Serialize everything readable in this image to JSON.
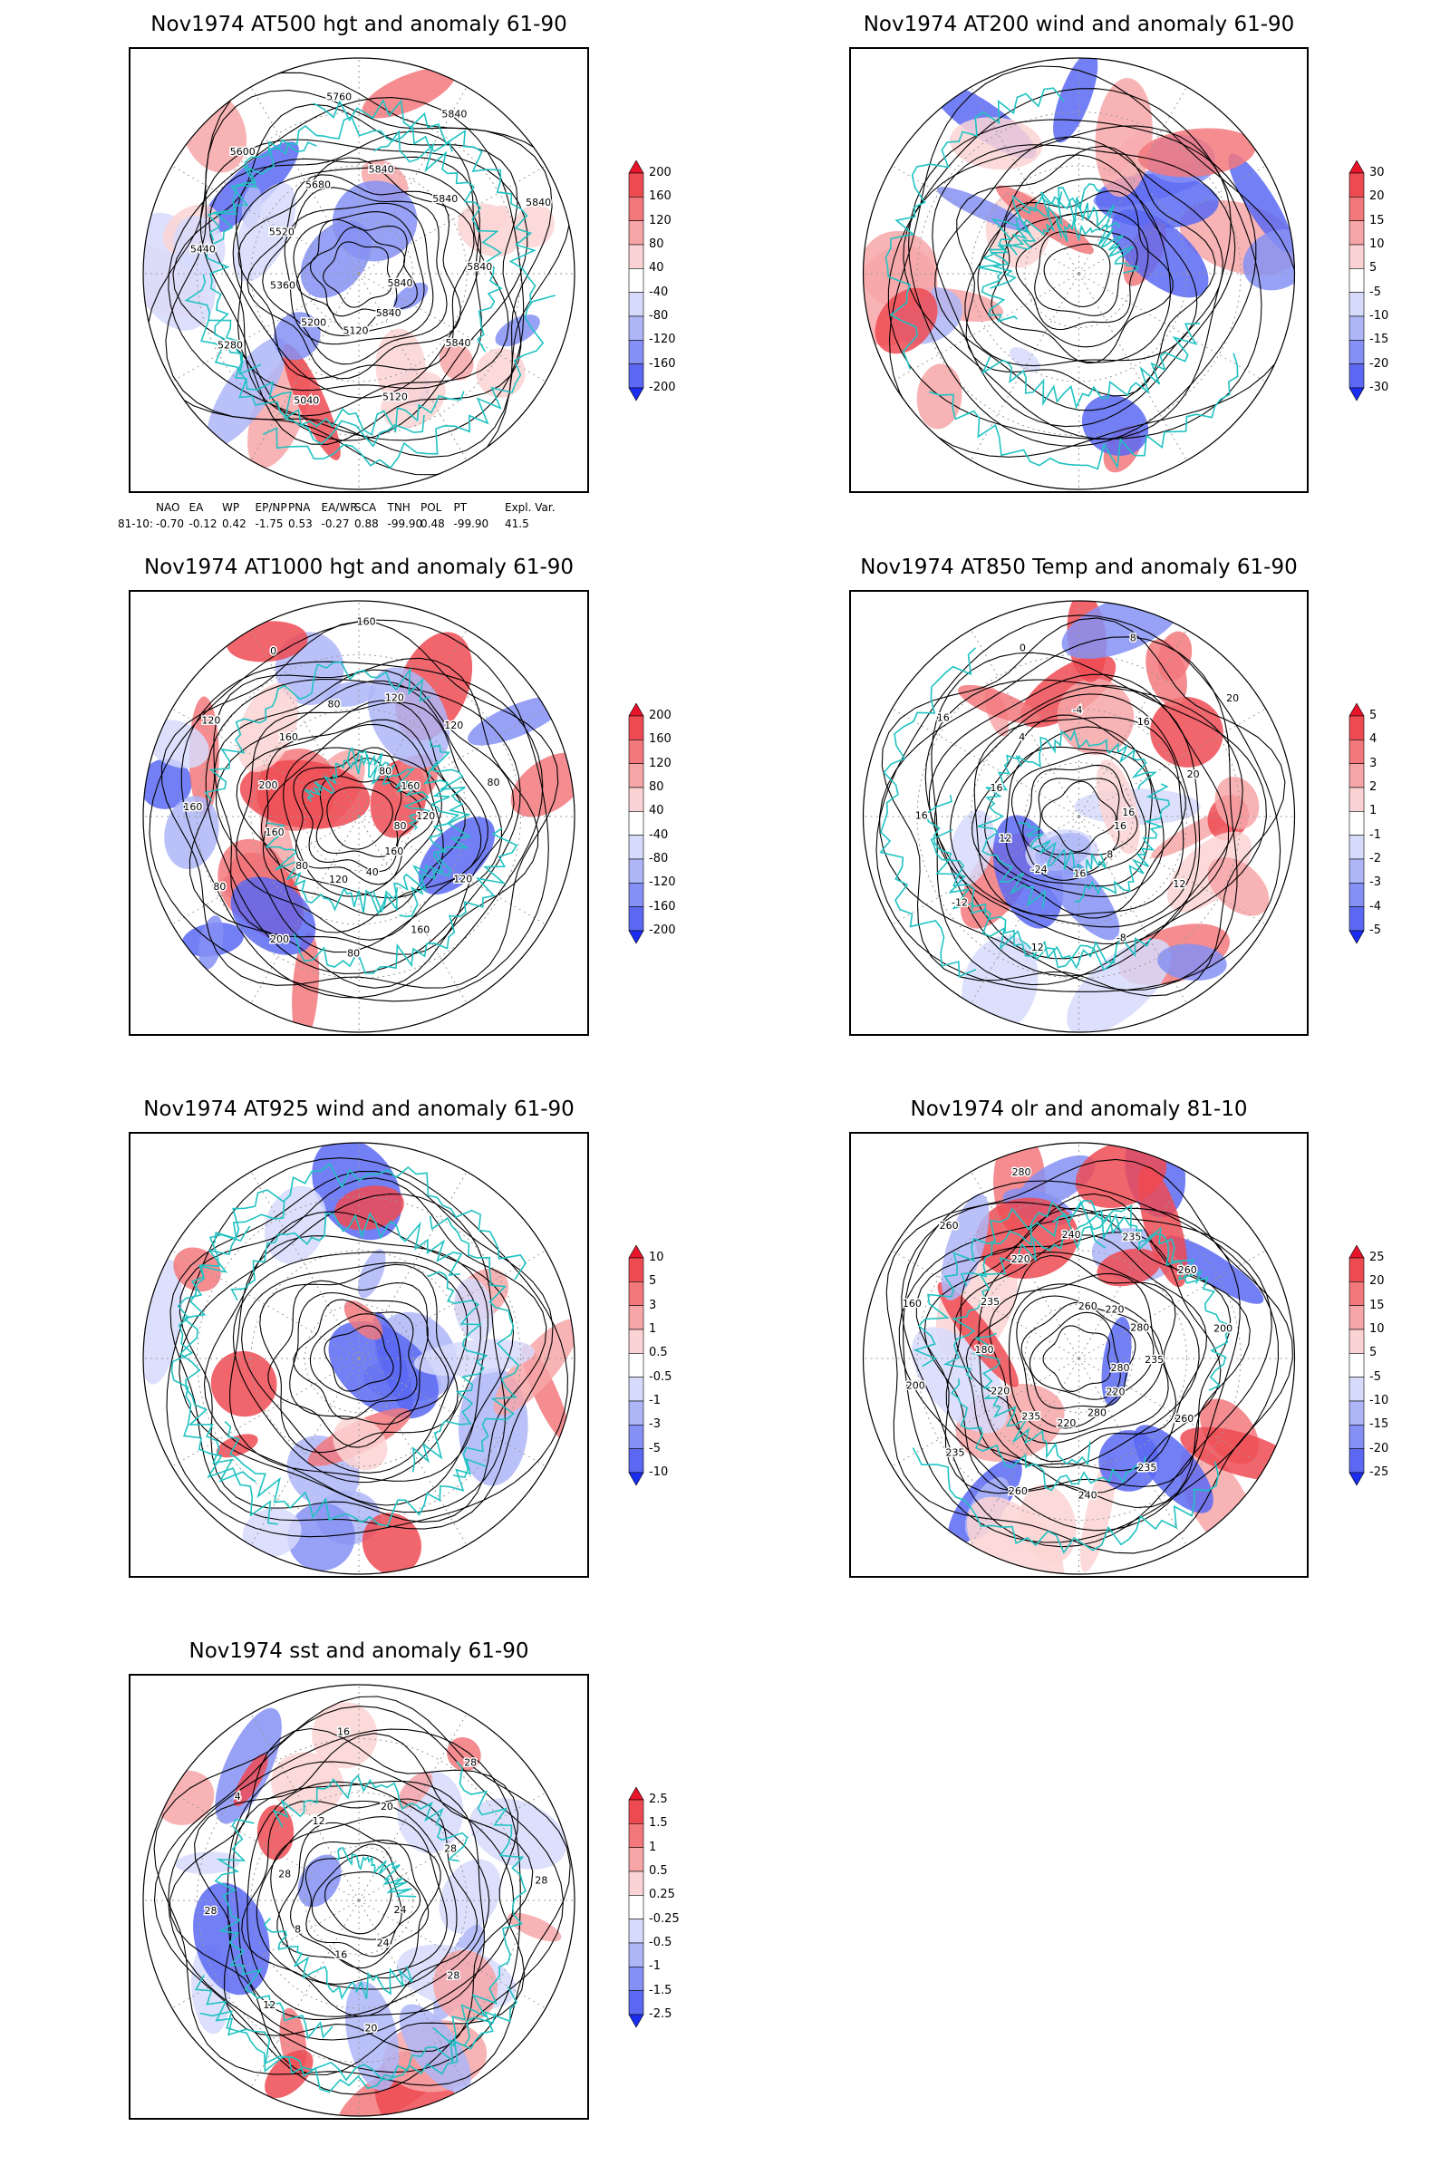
{
  "colors": {
    "land_outline": "#20c2c2",
    "contour": "#000000",
    "grid": "#9a9a9a",
    "positive": "#e8142a",
    "negative": "#1a2cf0"
  },
  "panels": [
    {
      "id": "at500",
      "title": "Nov1974 AT500 hgt and anomaly 61-90",
      "kind": "contour",
      "colorbar": [
        "200",
        "160",
        "120",
        "80",
        "40",
        "-40",
        "-80",
        "-120",
        "-160",
        "-200"
      ],
      "contour_labels": [
        "5840",
        "5840",
        "5840",
        "5120",
        "5120",
        "5040",
        "5200",
        "5280",
        "5360",
        "5440",
        "5520",
        "5600",
        "5680",
        "5760",
        "5840",
        "5840",
        "5840",
        "5840",
        "5840"
      ]
    },
    {
      "id": "at200",
      "title": "Nov1974 AT200 wind and anomaly 61-90",
      "kind": "wind",
      "colorbar": [
        "30",
        "20",
        "15",
        "10",
        "5",
        "-5",
        "-10",
        "-15",
        "-20",
        "-30"
      ],
      "contour_labels": []
    },
    {
      "id": "at1000",
      "title": "Nov1974 AT1000 hgt and anomaly 61-90",
      "kind": "contour",
      "colorbar": [
        "200",
        "160",
        "120",
        "80",
        "40",
        "-40",
        "-80",
        "-120",
        "-160",
        "-200"
      ],
      "contour_labels": [
        "80",
        "120",
        "160",
        "160",
        "40",
        "80",
        "120",
        "200",
        "80",
        "80",
        "160",
        "160",
        "200",
        "120",
        "160",
        "0",
        "80",
        "160",
        "120",
        "80",
        "120",
        "160",
        "80",
        "120"
      ]
    },
    {
      "id": "at850",
      "title": "Nov1974 AT850 Temp and anomaly 61-90",
      "kind": "contour",
      "colorbar": [
        "5",
        "4",
        "3",
        "2",
        "1",
        "-1",
        "-2",
        "-3",
        "-4",
        "-5"
      ],
      "contour_labels": [
        "16",
        "12",
        "8",
        "-8",
        "16",
        "12",
        "-24",
        "-12",
        "12",
        "16",
        "16",
        "16",
        "4",
        "0",
        "-4",
        "8",
        "16",
        "20",
        "20",
        "16"
      ]
    },
    {
      "id": "at925",
      "title": "Nov1974 AT925 wind and anomaly 61-90",
      "kind": "wind",
      "colorbar": [
        "10",
        "5",
        "3",
        "1",
        "0.5",
        "-0.5",
        "-1",
        "-3",
        "-5",
        "-10"
      ],
      "contour_labels": []
    },
    {
      "id": "olr",
      "title": "Nov1974 olr and anomaly 81-10",
      "kind": "contour",
      "colorbar": [
        "25",
        "20",
        "15",
        "10",
        "5",
        "-5",
        "-10",
        "-15",
        "-20",
        "-25"
      ],
      "contour_labels": [
        "280",
        "260",
        "220",
        "235",
        "280",
        "240",
        "220",
        "260",
        "235",
        "235",
        "220",
        "200",
        "180",
        "160",
        "235",
        "260",
        "220",
        "280",
        "240",
        "260",
        "235",
        "220",
        "260",
        "280",
        "200",
        "235"
      ]
    },
    {
      "id": "sst",
      "title": "Nov1974 sst and anomaly 61-90",
      "kind": "contour",
      "colorbar": [
        "2.5",
        "1.5",
        "1",
        "0.5",
        "0.25",
        "-0.25",
        "-0.5",
        "-1",
        "-1.5",
        "-2.5"
      ],
      "contour_labels": [
        "24",
        "28",
        "24",
        "20",
        "16",
        "12",
        "8",
        "28",
        "28",
        "4",
        "12",
        "16",
        "20",
        "28",
        "28",
        "28"
      ]
    }
  ],
  "indices": {
    "header": [
      "NAO",
      "EA",
      "WP",
      "EP/NP",
      "PNA",
      "EA/WR",
      "SCA",
      "TNH",
      "POL",
      "PT",
      "Expl. Var."
    ],
    "row_label": "81-10:",
    "values": [
      "-0.70",
      "-0.12",
      "0.42",
      "-1.75",
      "0.53",
      "-0.27",
      "0.88",
      "-99.90",
      "0.48",
      "-99.90",
      "41.5"
    ]
  }
}
